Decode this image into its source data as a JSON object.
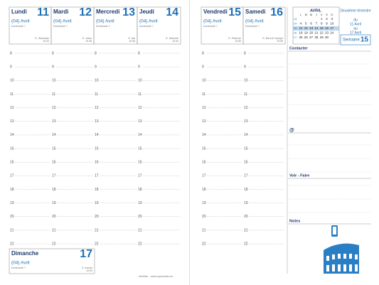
{
  "left_page": {
    "days": [
      {
        "name": "Lundi",
        "number": "11",
        "month": "(04) Avril",
        "note": "Dominante ?",
        "saint": "S. Stanislas",
        "time": "19:34"
      },
      {
        "name": "Mardi",
        "number": "12",
        "month": "(04) Avril",
        "note": "Dominante ?",
        "saint": "S. Jules",
        "time": "19:36"
      },
      {
        "name": "Mercredi",
        "number": "13",
        "month": "(04) Avril",
        "note": "Dominante ?",
        "saint": "S. Ida",
        "time": "19:38"
      },
      {
        "name": "Jeudi",
        "number": "14",
        "month": "(04) Avril",
        "note": "Dominante ?",
        "saint": "S. Maxime",
        "time": "19:40"
      }
    ],
    "sunday": {
      "name": "Dimanche",
      "number": "17",
      "month": "(04) Avril",
      "note": "Dominante ?",
      "saint": "S. Anicet",
      "time": "19:59"
    },
    "footer": "infoMer - www.quovadis.eu"
  },
  "hours": [
    "8",
    "9",
    "10",
    "11",
    "12",
    "13",
    "14",
    "15",
    "16",
    "17",
    "18",
    "19",
    "20",
    "21",
    "22"
  ],
  "right_page": {
    "days": [
      {
        "name": "Vendredi",
        "number": "15",
        "month": "(04) Avril",
        "note": "Dominante ?",
        "saint": "S. Paterne",
        "time": "19:56"
      },
      {
        "name": "Samedi",
        "number": "16",
        "month": "(04) Avril",
        "note": "Dominante ?",
        "saint": "S. Benoît Joseph",
        "time": "19:58"
      }
    ],
    "calendar": {
      "title": "AVRIL",
      "weekdays": [
        "L",
        "M",
        "M",
        "J",
        "V",
        "S",
        "D"
      ],
      "weeks": [
        {
          "number": "13",
          "days": [
            null,
            null,
            null,
            null,
            "1",
            "2",
            "3"
          ]
        },
        {
          "number": "14",
          "days": [
            "4",
            "5",
            "6",
            "7",
            "8",
            "9",
            "10"
          ]
        },
        {
          "number": "15",
          "days": [
            "11",
            "12",
            "13",
            "14",
            "15",
            "16",
            "17"
          ]
        },
        {
          "number": "16",
          "days": [
            "18",
            "19",
            "20",
            "21",
            "22",
            "23",
            "24"
          ]
        },
        {
          "number": "17",
          "days": [
            "25",
            "26",
            "27",
            "28",
            "29",
            "30",
            null
          ]
        }
      ]
    },
    "period": {
      "title": "Deuxième trimestre",
      "from_label": "du",
      "from": "11 Avril",
      "to_label": "au",
      "to": "17 Avril"
    },
    "week": {
      "label": "Semaine",
      "number": "15"
    },
    "sections": {
      "contact": "Contacter",
      "email": "@",
      "todo": "Voir - Faire",
      "notes": "Notes"
    }
  }
}
